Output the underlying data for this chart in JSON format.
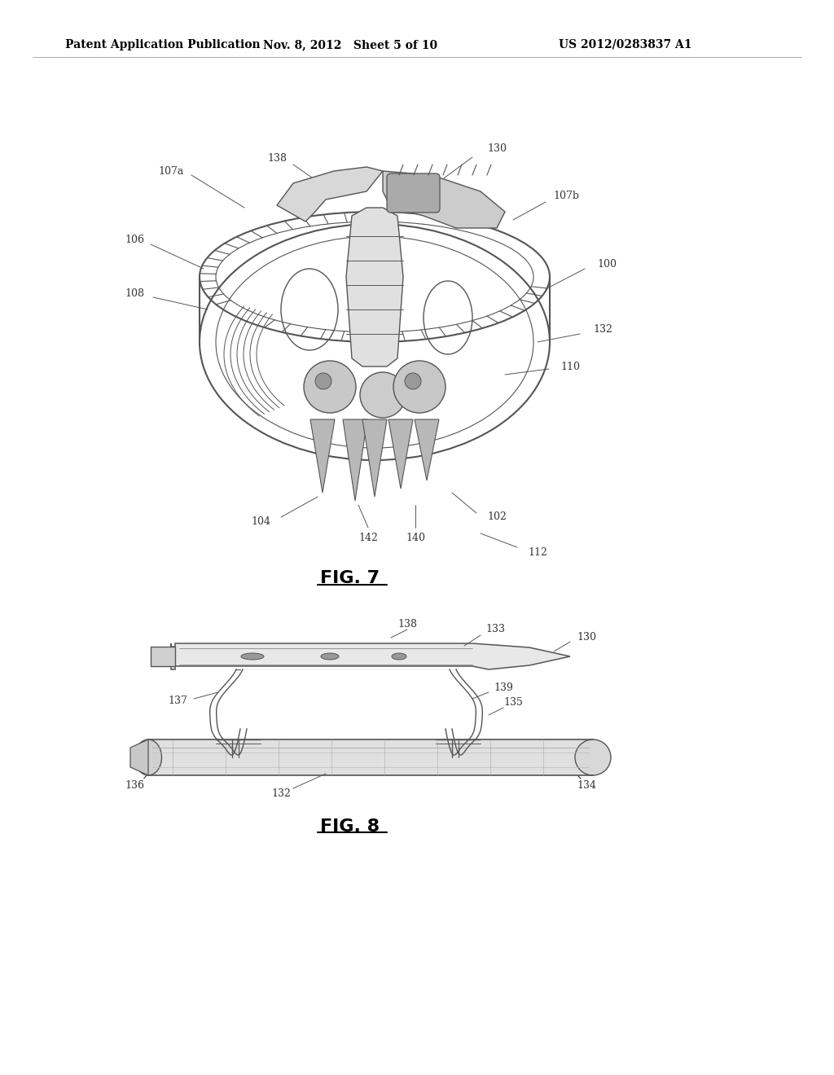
{
  "background_color": "#ffffff",
  "page_bg": "#f5f5f0",
  "header": {
    "left": "Patent Application Publication",
    "center": "Nov. 8, 2012   Sheet 5 of 10",
    "right": "US 2012/0283837 A1"
  },
  "fig7_label": "FIG. 7",
  "fig8_label": "FIG. 8",
  "line_color": "#555555",
  "text_color": "#333333"
}
